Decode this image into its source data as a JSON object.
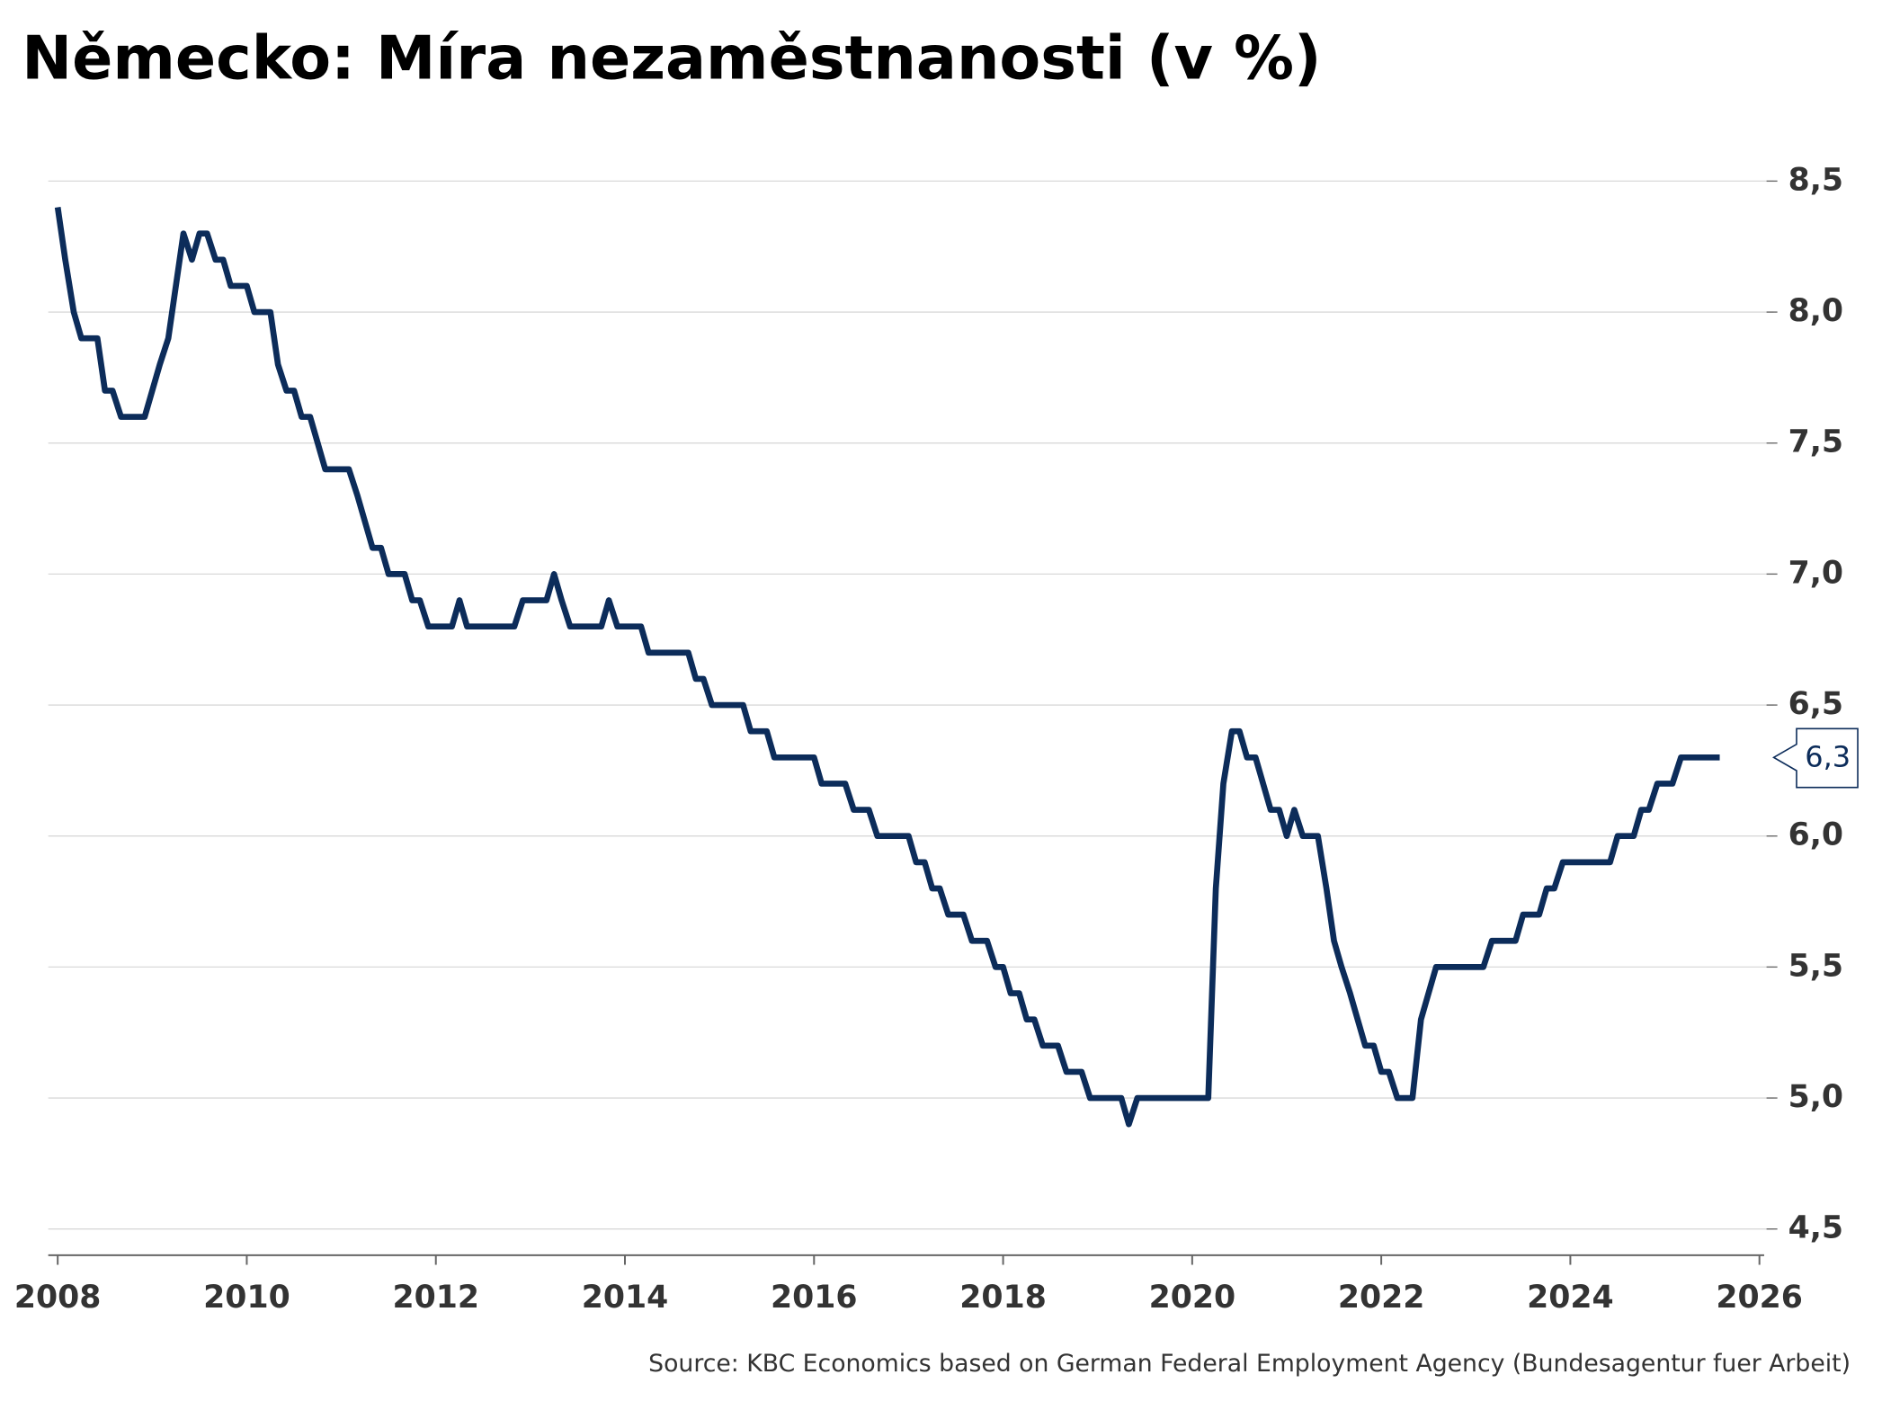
{
  "chart_data": {
    "type": "line",
    "title": "Německo: Míra nezaměstnanosti (v %)",
    "source": "Source: KBC Economics based on German Federal Employment Agency (Bundesagentur fuer Arbeit)",
    "last_value_label": "6,3",
    "x": [
      2008.0,
      2008.08,
      2008.17,
      2008.25,
      2008.33,
      2008.42,
      2008.5,
      2008.58,
      2008.67,
      2008.75,
      2008.83,
      2008.92,
      2009.0,
      2009.08,
      2009.17,
      2009.25,
      2009.33,
      2009.42,
      2009.5,
      2009.58,
      2009.67,
      2009.75,
      2009.83,
      2009.92,
      2010.0,
      2010.08,
      2010.17,
      2010.25,
      2010.33,
      2010.42,
      2010.5,
      2010.58,
      2010.67,
      2010.75,
      2010.83,
      2010.92,
      2011.0,
      2011.08,
      2011.17,
      2011.25,
      2011.33,
      2011.42,
      2011.5,
      2011.58,
      2011.67,
      2011.75,
      2011.83,
      2011.92,
      2012.0,
      2012.08,
      2012.17,
      2012.25,
      2012.33,
      2012.42,
      2012.5,
      2012.58,
      2012.67,
      2012.75,
      2012.83,
      2012.92,
      2013.0,
      2013.08,
      2013.17,
      2013.25,
      2013.33,
      2013.42,
      2013.5,
      2013.58,
      2013.67,
      2013.75,
      2013.83,
      2013.92,
      2014.0,
      2014.08,
      2014.17,
      2014.25,
      2014.33,
      2014.42,
      2014.5,
      2014.58,
      2014.67,
      2014.75,
      2014.83,
      2014.92,
      2015.0,
      2015.08,
      2015.17,
      2015.25,
      2015.33,
      2015.42,
      2015.5,
      2015.58,
      2015.67,
      2015.75,
      2015.83,
      2015.92,
      2016.0,
      2016.08,
      2016.17,
      2016.25,
      2016.33,
      2016.42,
      2016.5,
      2016.58,
      2016.67,
      2016.75,
      2016.83,
      2016.92,
      2017.0,
      2017.08,
      2017.17,
      2017.25,
      2017.33,
      2017.42,
      2017.5,
      2017.58,
      2017.67,
      2017.75,
      2017.83,
      2017.92,
      2018.0,
      2018.08,
      2018.17,
      2018.25,
      2018.33,
      2018.42,
      2018.5,
      2018.58,
      2018.67,
      2018.75,
      2018.83,
      2018.92,
      2019.0,
      2019.08,
      2019.17,
      2019.25,
      2019.33,
      2019.42,
      2019.5,
      2019.58,
      2019.67,
      2019.75,
      2019.83,
      2019.92,
      2020.0,
      2020.08,
      2020.17,
      2020.25,
      2020.33,
      2020.42,
      2020.5,
      2020.58,
      2020.67,
      2020.75,
      2020.83,
      2020.92,
      2021.0,
      2021.08,
      2021.17,
      2021.25,
      2021.33,
      2021.42,
      2021.5,
      2021.58,
      2021.67,
      2021.75,
      2021.83,
      2021.92,
      2022.0,
      2022.08,
      2022.17,
      2022.25,
      2022.33,
      2022.42,
      2022.5,
      2022.58,
      2022.67,
      2022.75,
      2022.83,
      2022.92,
      2023.0,
      2023.08,
      2023.17,
      2023.25,
      2023.33,
      2023.42,
      2023.5,
      2023.58,
      2023.67,
      2023.75,
      2023.83,
      2023.92,
      2024.0,
      2024.08,
      2024.17,
      2024.25,
      2024.33,
      2024.42,
      2024.5,
      2024.58,
      2024.67,
      2024.75,
      2024.83,
      2024.92,
      2025.0,
      2025.08,
      2025.17,
      2025.25,
      2025.33,
      2025.42,
      2025.5,
      2025.58
    ],
    "series": [
      {
        "color": "#0c2c5a",
        "values": [
          8.4,
          8.2,
          8.0,
          7.9,
          7.9,
          7.9,
          7.7,
          7.7,
          7.6,
          7.6,
          7.6,
          7.6,
          7.7,
          7.8,
          7.9,
          8.1,
          8.3,
          8.2,
          8.3,
          8.3,
          8.2,
          8.2,
          8.1,
          8.1,
          8.1,
          8.0,
          8.0,
          8.0,
          7.8,
          7.7,
          7.7,
          7.6,
          7.6,
          7.5,
          7.4,
          7.4,
          7.4,
          7.4,
          7.3,
          7.2,
          7.1,
          7.1,
          7.0,
          7.0,
          7.0,
          6.9,
          6.9,
          6.8,
          6.8,
          6.8,
          6.8,
          6.9,
          6.8,
          6.8,
          6.8,
          6.8,
          6.8,
          6.8,
          6.8,
          6.9,
          6.9,
          6.9,
          6.9,
          7.0,
          6.9,
          6.8,
          6.8,
          6.8,
          6.8,
          6.8,
          6.9,
          6.8,
          6.8,
          6.8,
          6.8,
          6.7,
          6.7,
          6.7,
          6.7,
          6.7,
          6.7,
          6.6,
          6.6,
          6.5,
          6.5,
          6.5,
          6.5,
          6.5,
          6.4,
          6.4,
          6.4,
          6.3,
          6.3,
          6.3,
          6.3,
          6.3,
          6.3,
          6.2,
          6.2,
          6.2,
          6.2,
          6.1,
          6.1,
          6.1,
          6.0,
          6.0,
          6.0,
          6.0,
          6.0,
          5.9,
          5.9,
          5.8,
          5.8,
          5.7,
          5.7,
          5.7,
          5.6,
          5.6,
          5.6,
          5.5,
          5.5,
          5.4,
          5.4,
          5.3,
          5.3,
          5.2,
          5.2,
          5.2,
          5.1,
          5.1,
          5.1,
          5.0,
          5.0,
          5.0,
          5.0,
          5.0,
          4.9,
          5.0,
          5.0,
          5.0,
          5.0,
          5.0,
          5.0,
          5.0,
          5.0,
          5.0,
          5.0,
          5.8,
          6.2,
          6.4,
          6.4,
          6.3,
          6.3,
          6.2,
          6.1,
          6.1,
          6.0,
          6.1,
          6.0,
          6.0,
          6.0,
          5.8,
          5.6,
          5.5,
          5.4,
          5.3,
          5.2,
          5.2,
          5.1,
          5.1,
          5.0,
          5.0,
          5.0,
          5.3,
          5.4,
          5.5,
          5.5,
          5.5,
          5.5,
          5.5,
          5.5,
          5.5,
          5.6,
          5.6,
          5.6,
          5.6,
          5.7,
          5.7,
          5.7,
          5.8,
          5.8,
          5.9,
          5.9,
          5.9,
          5.9,
          5.9,
          5.9,
          5.9,
          6.0,
          6.0,
          6.0,
          6.1,
          6.1,
          6.2,
          6.2,
          6.2,
          6.3,
          6.3,
          6.3,
          6.3,
          6.3,
          6.3
        ]
      }
    ],
    "xlim": [
      2007.9,
      2026.05
    ],
    "xticks": [
      2008,
      2010,
      2012,
      2014,
      2016,
      2018,
      2020,
      2022,
      2024,
      2026
    ],
    "ylim": [
      4.4,
      8.55
    ],
    "yticks": [
      {
        "value": 4.5,
        "label": "4,5"
      },
      {
        "value": 5,
        "label": "5,0"
      },
      {
        "value": 5.5,
        "label": "5,5"
      },
      {
        "value": 6,
        "label": "6,0"
      },
      {
        "value": 6.5,
        "label": "6,5"
      },
      {
        "value": 7,
        "label": "7,0"
      },
      {
        "value": 7.5,
        "label": "7,5"
      },
      {
        "value": 8,
        "label": "8,0"
      },
      {
        "value": 8.5,
        "label": "8,5"
      }
    ],
    "grid": true
  }
}
